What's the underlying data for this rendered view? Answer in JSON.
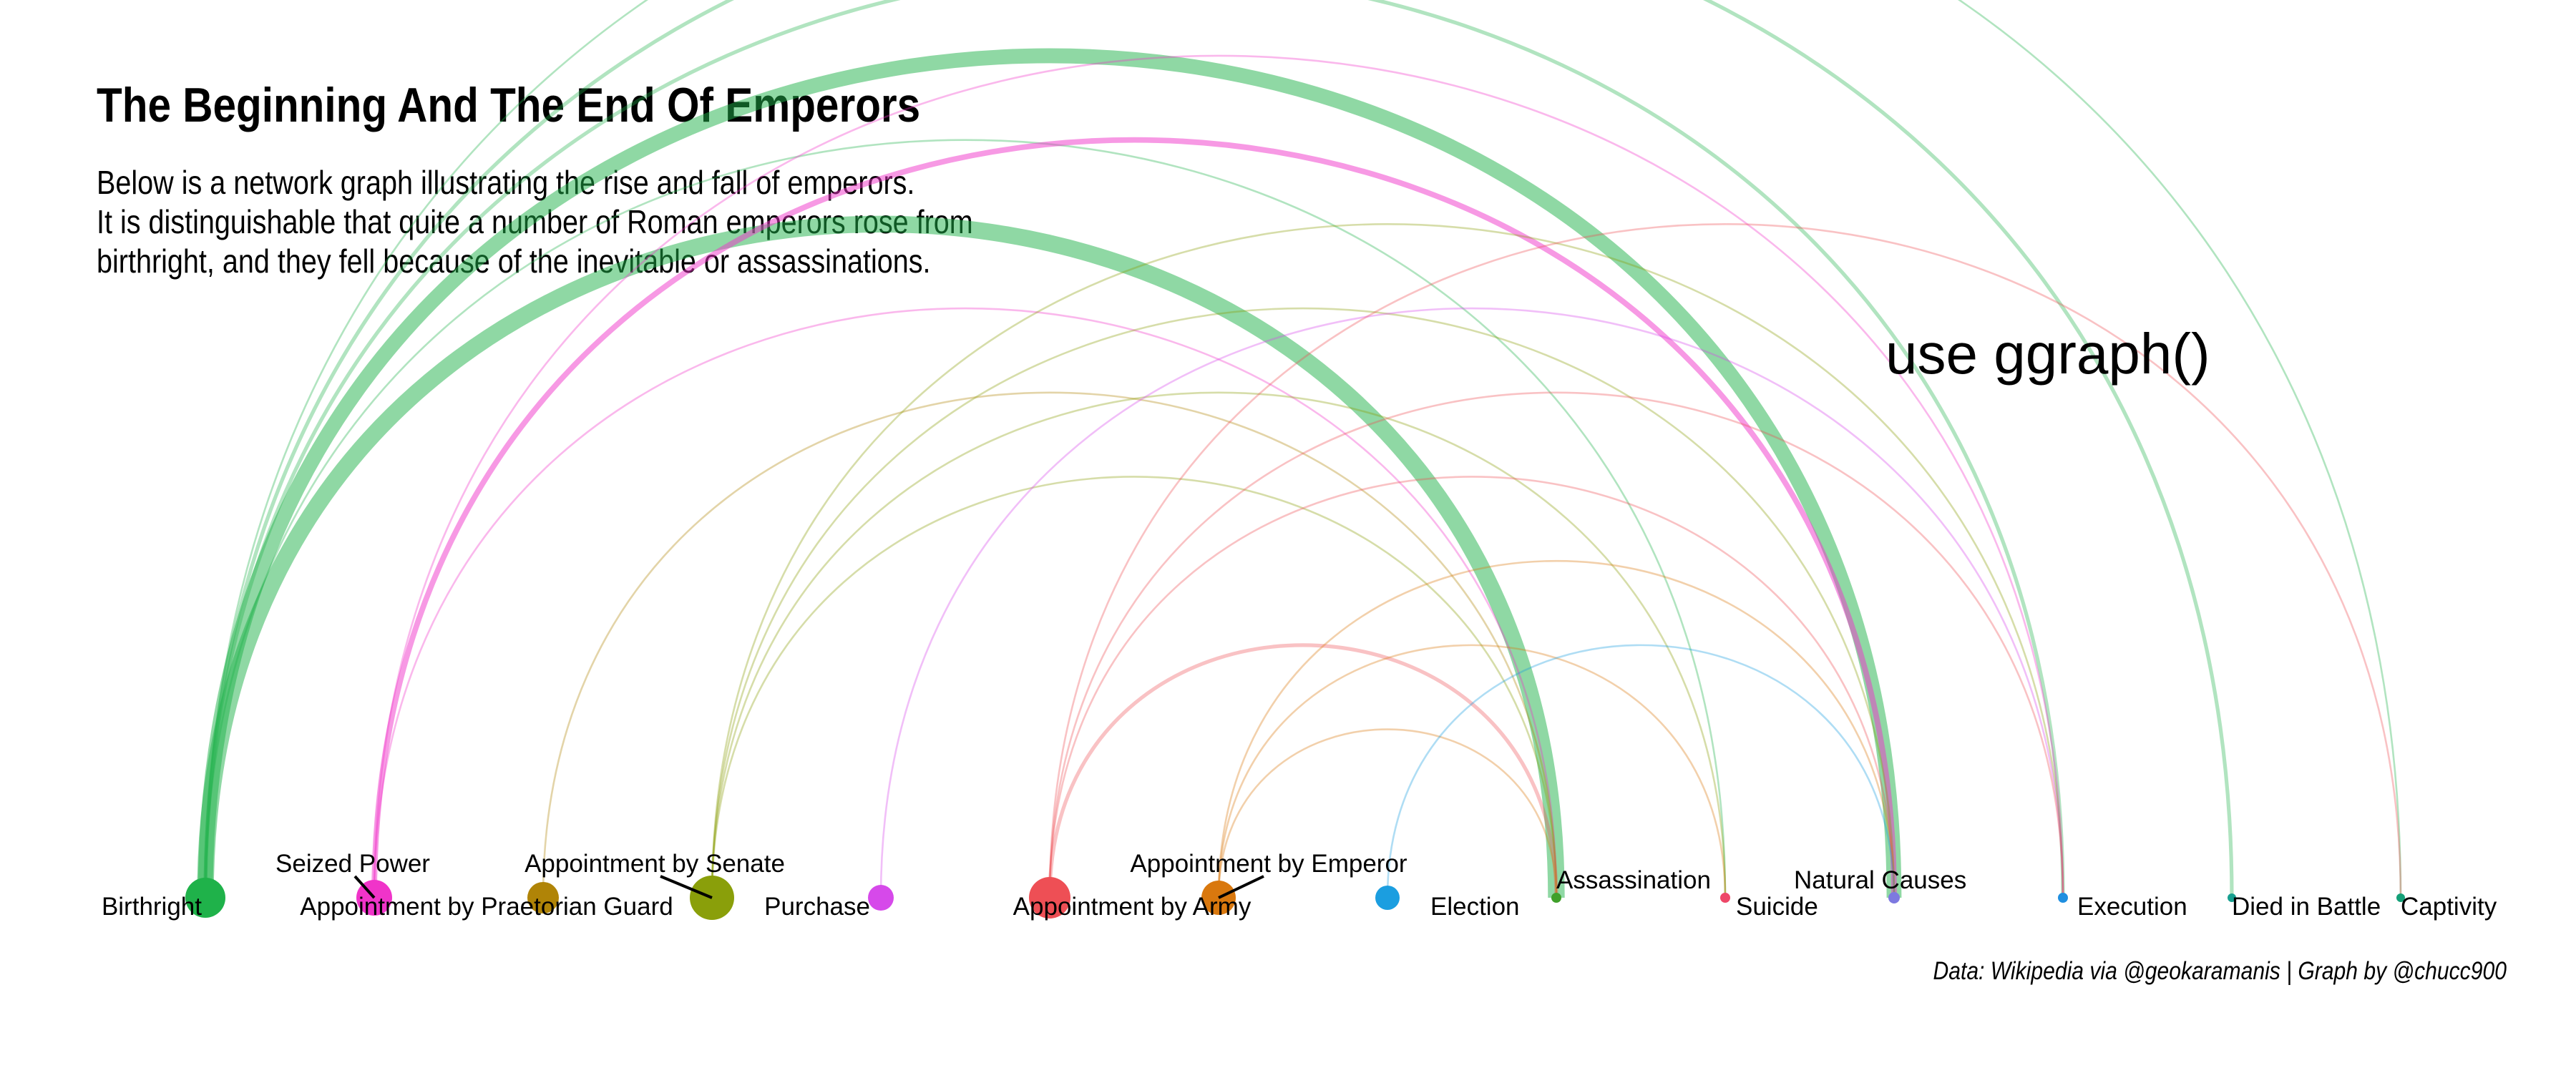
{
  "title": "The Beginning And The End Of Emperors",
  "subtitle_lines": [
    "Below is a network graph illustrating the rise and fall of emperors.",
    "It is distinguishable that quite a number of Roman emperors rose from",
    "birthright, and they fell because of the inevitable or assassinations."
  ],
  "caption": "Data: Wikipedia via @geokaramanis | Graph by @chucc900",
  "annotation": "use ggraph()",
  "chart_data": {
    "type": "arc-network",
    "nodes": [
      {
        "name": "Birthright",
        "color": "#1fb24a",
        "size": 28
      },
      {
        "name": "Seized Power",
        "color": "#f034c9",
        "size": 25
      },
      {
        "name": "Appointment by Praetorian Guard",
        "color": "#b08407",
        "size": 22
      },
      {
        "name": "Appointment by Senate",
        "color": "#8a9f0a",
        "size": 31
      },
      {
        "name": "Purchase",
        "color": "#d649ea",
        "size": 18
      },
      {
        "name": "Appointment by Army",
        "color": "#ee4f55",
        "size": 29
      },
      {
        "name": "Appointment by Emperor",
        "color": "#d9780e",
        "size": 24
      },
      {
        "name": "Election",
        "color": "#1b9ee0",
        "size": 17
      },
      {
        "name": "Assassination",
        "color": "#40a02a",
        "size": 7
      },
      {
        "name": "Suicide",
        "color": "#ee4768",
        "size": 7
      },
      {
        "name": "Natural Causes",
        "color": "#7d79e0",
        "size": 8
      },
      {
        "name": "Execution",
        "color": "#1f8fe0",
        "size": 7
      },
      {
        "name": "Died in Battle",
        "color": "#17a090",
        "size": 6
      },
      {
        "name": "Captivity",
        "color": "#14a078",
        "size": 6
      }
    ],
    "edges": [
      {
        "source": "Birthright",
        "target": "Assassination",
        "weight": 9
      },
      {
        "source": "Birthright",
        "target": "Natural Causes",
        "weight": 8
      },
      {
        "source": "Birthright",
        "target": "Died in Battle",
        "weight": 2
      },
      {
        "source": "Birthright",
        "target": "Execution",
        "weight": 2
      },
      {
        "source": "Birthright",
        "target": "Suicide",
        "weight": 1
      },
      {
        "source": "Birthright",
        "target": "Captivity",
        "weight": 1
      },
      {
        "source": "Seized Power",
        "target": "Natural Causes",
        "weight": 3
      },
      {
        "source": "Seized Power",
        "target": "Assassination",
        "weight": 1
      },
      {
        "source": "Seized Power",
        "target": "Execution",
        "weight": 1
      },
      {
        "source": "Appointment by Praetorian Guard",
        "target": "Assassination",
        "weight": 1
      },
      {
        "source": "Appointment by Senate",
        "target": "Assassination",
        "weight": 1
      },
      {
        "source": "Appointment by Senate",
        "target": "Natural Causes",
        "weight": 1
      },
      {
        "source": "Appointment by Senate",
        "target": "Suicide",
        "weight": 1
      },
      {
        "source": "Appointment by Senate",
        "target": "Execution",
        "weight": 1
      },
      {
        "source": "Purchase",
        "target": "Execution",
        "weight": 1
      },
      {
        "source": "Appointment by Army",
        "target": "Assassination",
        "weight": 2
      },
      {
        "source": "Appointment by Army",
        "target": "Natural Causes",
        "weight": 1
      },
      {
        "source": "Appointment by Army",
        "target": "Execution",
        "weight": 1
      },
      {
        "source": "Appointment by Army",
        "target": "Captivity",
        "weight": 1
      },
      {
        "source": "Appointment by Emperor",
        "target": "Natural Causes",
        "weight": 1
      },
      {
        "source": "Appointment by Emperor",
        "target": "Assassination",
        "weight": 1
      },
      {
        "source": "Appointment by Emperor",
        "target": "Suicide",
        "weight": 1
      },
      {
        "source": "Election",
        "target": "Natural Causes",
        "weight": 1
      }
    ]
  }
}
